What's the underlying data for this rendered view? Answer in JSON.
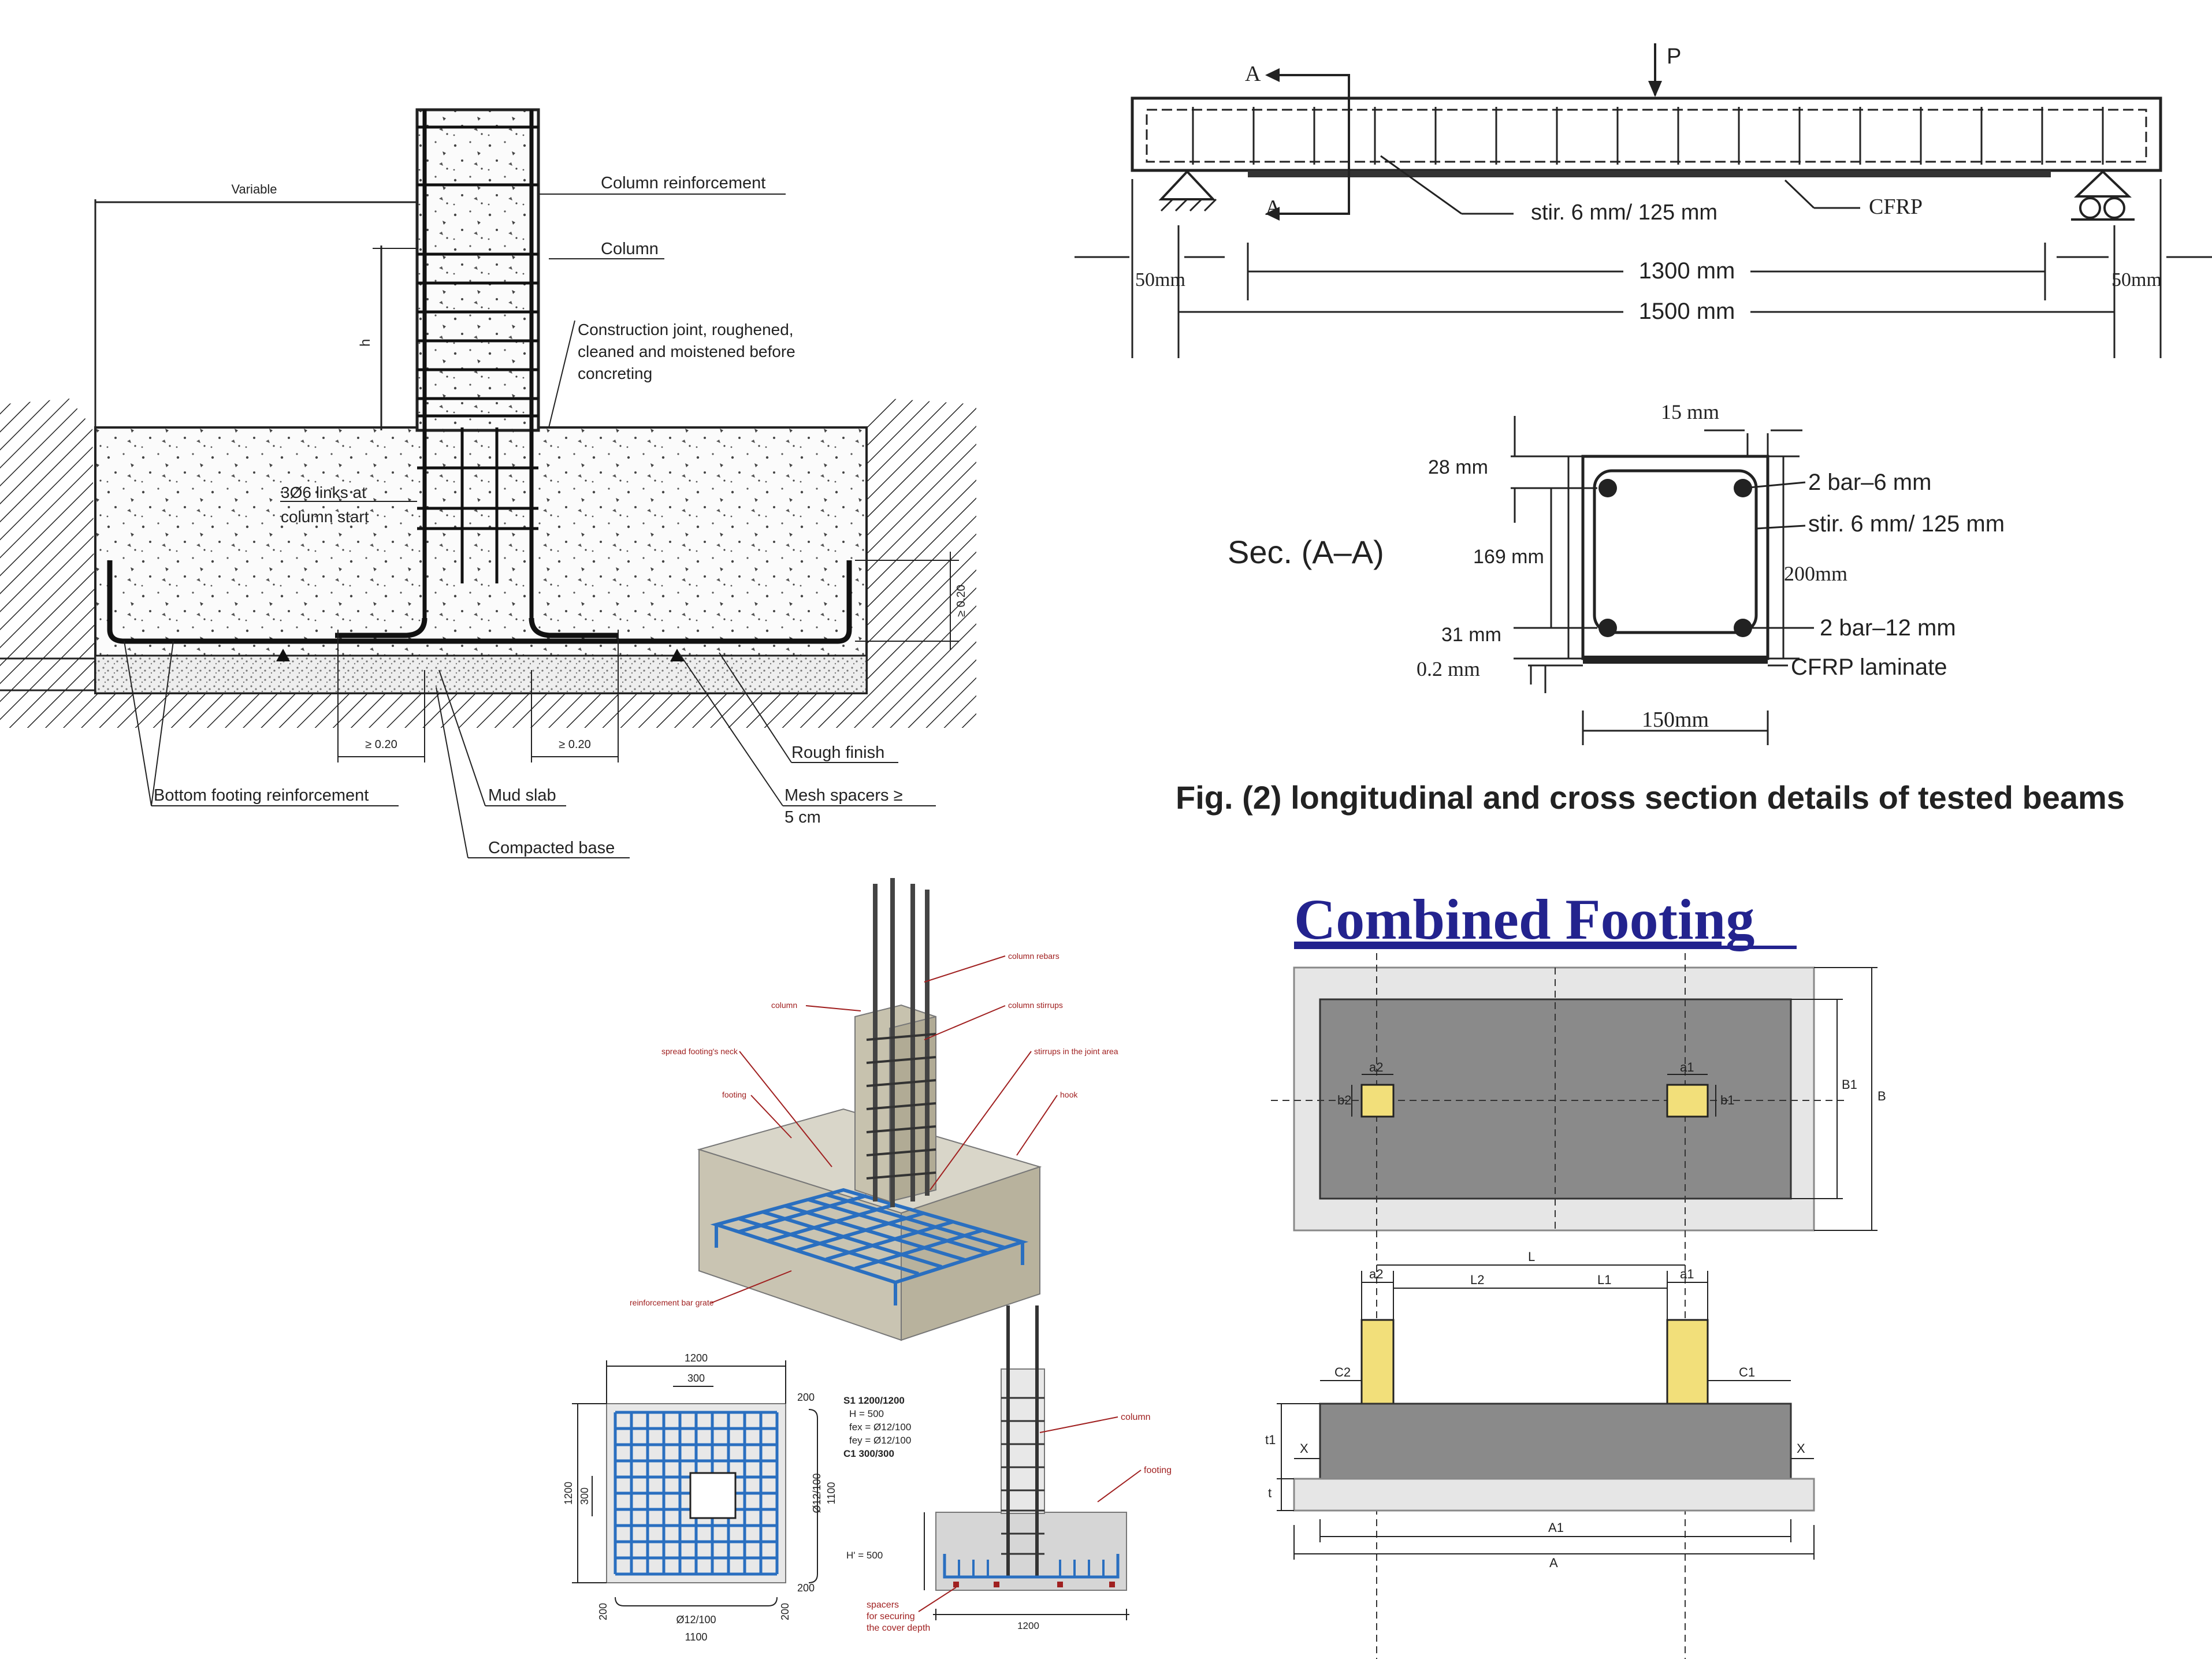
{
  "footing_section": {
    "variable": "Variable",
    "h": "h",
    "col_reinf": "Column reinforcement",
    "column": "Column",
    "joint1": "Construction joint, roughened,",
    "joint2": "cleaned and moistened before",
    "joint3": "concreting",
    "links1": "3Ø6 links at",
    "links2": "column start",
    "dim020_right": "≥ 0.20",
    "dim020_a": "≥ 0.20",
    "dim020_b": "≥ 0.20",
    "rough_finish": "Rough finish",
    "bottom_reinf": "Bottom footing reinforcement",
    "mud_slab": "Mud slab",
    "mesh_spacers1": "Mesh spacers  ≥",
    "mesh_spacers2": "5 cm",
    "compacted_base": "Compacted base"
  },
  "beam": {
    "A_top": "A",
    "A_bottom": "A",
    "P": "P",
    "stirrup": "stir. 6 mm/ 125 mm",
    "cfrp": "CFRP",
    "span1300": "1300 mm",
    "span1500": "1500 mm",
    "end_left": "50mm",
    "end_right": "50mm",
    "sec_label": "Sec. (A–A)",
    "d15": "15 mm",
    "d28": "28 mm",
    "d169": "169 mm",
    "d31": "31 mm",
    "d02": "0.2 mm",
    "d200": "200mm",
    "d150": "150mm",
    "top_bars": "2 bar–6 mm",
    "stir_sec": "stir. 6 mm/ 125 mm",
    "bot_bars": "2 bar–12 mm",
    "laminate": "CFRP laminate",
    "caption": "Fig. (2) longitudinal and cross section details of tested beams"
  },
  "spread_3d": {
    "column_rebars": "column rebars",
    "column": "column",
    "column_stirrups": "column stirrups",
    "neck": "spread footing's neck",
    "joint_stirrups": "stirrups in the joint area",
    "footing": "footing",
    "hook": "hook",
    "grate": "reinforcement bar grate",
    "dim1200_top": "1200",
    "dim300_top": "300",
    "dim1200_left": "1200",
    "dim300_left": "300",
    "dim200_r1": "200",
    "dim200_r2": "200",
    "bar_vert": "Ø12/100",
    "dim1100_vert": "1100",
    "dim200_bl": "200",
    "dim200_br": "200",
    "bar_bottom": "Ø12/100",
    "dim1100_bottom": "1100",
    "s1": "S1 1200/1200",
    "h500": "H = 500",
    "fex": "fex = Ø12/100",
    "fey": "fey = Ø12/100",
    "c1": "C1 300/300",
    "column_label": "column",
    "footing_label": "footing",
    "h_prime": "H' = 500",
    "spacers1": "spacers",
    "spacers2": "for securing",
    "spacers3": "the cover depth",
    "dim1200_elev": "1200"
  },
  "combined": {
    "title": "Combined Footing",
    "a2": "a2",
    "a1": "a1",
    "b2": "b2",
    "b1": "b1",
    "B1": "B1",
    "B": "B",
    "L": "L",
    "a2e": "a2",
    "L2": "L2",
    "L1": "L1",
    "a1e": "a1",
    "C2": "C2",
    "C1": "C1",
    "t1": "t1",
    "t": "t",
    "X_left": "X",
    "X_right": "X",
    "A1": "A1",
    "A": "A"
  },
  "colors": {
    "line": "#1a1a1a",
    "concrete_bg": "#ececec",
    "rebar_blue": "#2a6fc0",
    "footing_gray": "#8a8a8a",
    "column_yellow": "#f2df7a",
    "title_blue": "#23238e",
    "label_red": "#a02020",
    "rebar_dark": "#333333"
  }
}
